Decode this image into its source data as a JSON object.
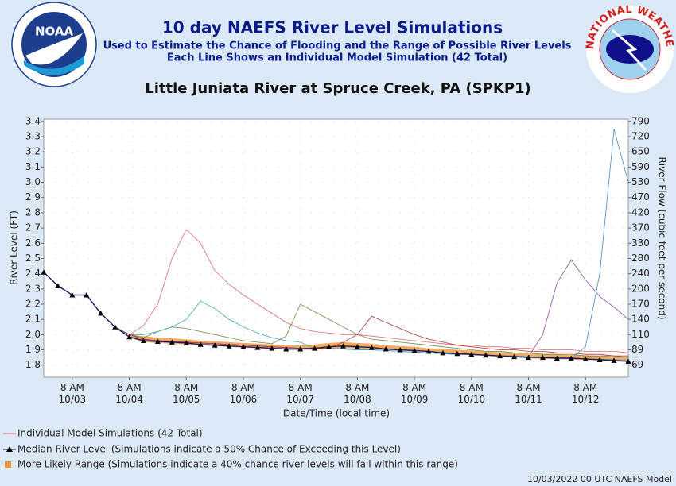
{
  "header": {
    "title": "10 day NAEFS River Level Simulations",
    "subtitle1": "Used to Estimate the Chance of Flooding and the Range of Possible River Levels",
    "subtitle2": "Each Line Shows an Individual Model Simulation (42 Total)",
    "left_logo": "NOAA",
    "right_logo": "NATIONAL WEATHER SERVICE"
  },
  "chart_data": {
    "type": "line",
    "title": "Little Juniata River at Spruce Creek, PA (SPKP1)",
    "x_label": "Date/Time (local time)",
    "y_label": "River Level (FT)",
    "y2_label": "River Flow (cubic feet per second)",
    "xlim": [
      0,
      246
    ],
    "xticks": [
      {
        "value": 12,
        "label": "8 AM\n10/03"
      },
      {
        "value": 36,
        "label": "8 AM\n10/04"
      },
      {
        "value": 60,
        "label": "8 AM\n10/05"
      },
      {
        "value": 84,
        "label": "8 AM\n10/06"
      },
      {
        "value": 108,
        "label": "8 AM\n10/07"
      },
      {
        "value": 132,
        "label": "8 AM\n10/08"
      },
      {
        "value": 156,
        "label": "8 AM\n10/09"
      },
      {
        "value": 180,
        "label": "8 AM\n10/10"
      },
      {
        "value": 204,
        "label": "8 AM\n10/11"
      },
      {
        "value": 228,
        "label": "8 AM\n10/12"
      }
    ],
    "ylim": [
      1.72,
      3.415
    ],
    "yticks": [
      1.8,
      1.9,
      {
        "value": 2,
        "label": "2.0"
      },
      2.1,
      2.2,
      2.3,
      2.4,
      2.5,
      2.6,
      2.7,
      2.8,
      2.9,
      {
        "value": 3,
        "label": "3.0"
      },
      3.1,
      3.2,
      3.3,
      3.4
    ],
    "y2ticks": [
      69,
      89,
      110,
      140,
      170,
      200,
      240,
      280,
      330,
      370,
      420,
      470,
      530,
      590,
      650,
      720,
      790
    ],
    "grid": true,
    "x": [
      0,
      6,
      12,
      18,
      24,
      30,
      36,
      42,
      48,
      54,
      60,
      66,
      72,
      78,
      84,
      90,
      96,
      102,
      108,
      114,
      120,
      126,
      132,
      138,
      144,
      150,
      156,
      162,
      168,
      174,
      180,
      186,
      192,
      198,
      204,
      210,
      216,
      222,
      228,
      234,
      240,
      246
    ],
    "series": [
      {
        "name": "Individual Model Simulations (42 Total)",
        "color": "#e06a6a",
        "values": [
          2.41,
          2.32,
          2.26,
          2.26,
          2.14,
          2.05,
          2.0,
          2.06,
          2.2,
          2.5,
          2.69,
          2.6,
          2.42,
          2.33,
          2.26,
          2.2,
          2.14,
          2.08,
          2.04,
          2.02,
          2.01,
          2.0,
          2.0,
          1.99,
          1.98,
          1.97,
          1.96,
          1.95,
          1.94,
          1.93,
          1.93,
          1.92,
          1.92,
          1.91,
          1.91,
          1.9,
          1.9,
          1.9,
          1.89,
          1.89,
          1.89,
          1.88
        ]
      },
      {
        "color": "#8a4aa8",
        "values": [
          2.41,
          2.32,
          2.26,
          2.26,
          2.14,
          2.05,
          2.0,
          1.97,
          1.96,
          1.955,
          1.95,
          1.945,
          1.94,
          1.935,
          1.93,
          1.925,
          1.92,
          1.915,
          1.91,
          1.91,
          1.91,
          1.905,
          1.9,
          1.9,
          1.895,
          1.89,
          1.885,
          1.88,
          1.875,
          1.87,
          1.87,
          1.865,
          1.86,
          1.86,
          1.855,
          2.0,
          2.34,
          2.49,
          2.36,
          2.25,
          2.18,
          2.1
        ]
      },
      {
        "color": "#4a8ac8",
        "values": [
          2.41,
          2.32,
          2.26,
          2.26,
          2.14,
          2.05,
          2.0,
          1.97,
          1.96,
          1.955,
          1.95,
          1.945,
          1.94,
          1.935,
          1.93,
          1.925,
          1.92,
          1.915,
          1.91,
          1.91,
          1.91,
          1.905,
          1.9,
          1.9,
          1.895,
          1.89,
          1.885,
          1.88,
          1.875,
          1.87,
          1.87,
          1.865,
          1.86,
          1.86,
          1.855,
          1.85,
          1.85,
          1.845,
          1.92,
          2.4,
          3.35,
          3.0
        ]
      },
      {
        "color": "#6a8a40",
        "values": [
          2.41,
          2.32,
          2.26,
          2.26,
          2.14,
          2.05,
          2.0,
          1.98,
          2.02,
          2.05,
          2.04,
          2.02,
          2.0,
          1.98,
          1.96,
          1.95,
          1.94,
          1.99,
          2.2,
          2.15,
          2.1,
          2.05,
          2.0,
          1.97,
          1.96,
          1.95,
          1.94,
          1.93,
          1.92,
          1.91,
          1.9,
          1.89,
          1.89,
          1.88,
          1.88,
          1.87,
          1.87,
          1.87,
          1.86,
          1.86,
          1.86,
          1.85
        ]
      },
      {
        "color": "#40a8a8",
        "values": [
          2.41,
          2.32,
          2.26,
          2.26,
          2.14,
          2.05,
          2.0,
          2.0,
          2.02,
          2.05,
          2.1,
          2.22,
          2.17,
          2.1,
          2.05,
          2.01,
          1.98,
          1.96,
          1.95,
          1.91,
          1.91,
          1.905,
          1.9,
          1.9,
          1.895,
          1.89,
          1.885,
          1.88,
          1.875,
          1.87,
          1.87,
          1.865,
          1.86,
          1.86,
          1.855,
          1.85,
          1.85,
          1.845,
          1.84,
          1.84,
          1.835,
          1.83
        ]
      },
      {
        "color": "#b03838",
        "values": [
          2.41,
          2.32,
          2.26,
          2.26,
          2.14,
          2.05,
          2.0,
          1.97,
          1.96,
          1.955,
          1.95,
          1.945,
          1.94,
          1.935,
          1.93,
          1.925,
          1.92,
          1.915,
          1.91,
          1.91,
          1.91,
          1.95,
          2.0,
          2.12,
          2.08,
          2.04,
          2.0,
          1.97,
          1.95,
          1.93,
          1.92,
          1.91,
          1.9,
          1.9,
          1.89,
          1.89,
          1.88,
          1.88,
          1.87,
          1.87,
          1.86,
          1.86
        ]
      }
    ],
    "median": {
      "name": "Median River Level (Simulations indicate a 50% Chance of Exceeding this Level)",
      "color": "#1a1a60",
      "values": [
        2.41,
        2.32,
        2.26,
        2.26,
        2.14,
        2.05,
        1.985,
        1.96,
        1.955,
        1.95,
        1.945,
        1.935,
        1.93,
        1.925,
        1.92,
        1.915,
        1.91,
        1.905,
        1.905,
        1.91,
        1.92,
        1.925,
        1.92,
        1.915,
        1.905,
        1.9,
        1.895,
        1.89,
        1.88,
        1.875,
        1.87,
        1.865,
        1.86,
        1.855,
        1.85,
        1.85,
        1.845,
        1.845,
        1.84,
        1.835,
        1.83,
        1.825
      ]
    },
    "likely_range": {
      "name": "More Likely Range (Simulations indicate a 40% chance river levels will fall within this range)",
      "color": "#f0963c",
      "low": [
        null,
        null,
        null,
        null,
        null,
        null,
        1.98,
        1.95,
        1.945,
        1.94,
        1.935,
        1.93,
        1.925,
        1.92,
        1.915,
        1.91,
        1.905,
        1.9,
        1.9,
        1.9,
        1.905,
        1.91,
        1.91,
        1.905,
        1.9,
        1.895,
        1.89,
        1.885,
        1.875,
        1.87,
        1.865,
        1.86,
        1.855,
        1.85,
        1.845,
        1.84,
        1.84,
        1.835,
        1.835,
        1.83,
        1.825,
        1.82
      ],
      "high": [
        null,
        null,
        null,
        null,
        null,
        null,
        2.0,
        1.99,
        1.98,
        1.975,
        1.97,
        1.96,
        1.955,
        1.95,
        1.945,
        1.94,
        1.935,
        1.93,
        1.93,
        1.935,
        1.945,
        1.95,
        1.945,
        1.94,
        1.93,
        1.925,
        1.92,
        1.91,
        1.905,
        1.9,
        1.895,
        1.89,
        1.885,
        1.88,
        1.875,
        1.87,
        1.87,
        1.865,
        1.865,
        1.86,
        1.855,
        1.85
      ]
    },
    "footer": "10/03/2022 00 UTC NAEFS Model"
  }
}
